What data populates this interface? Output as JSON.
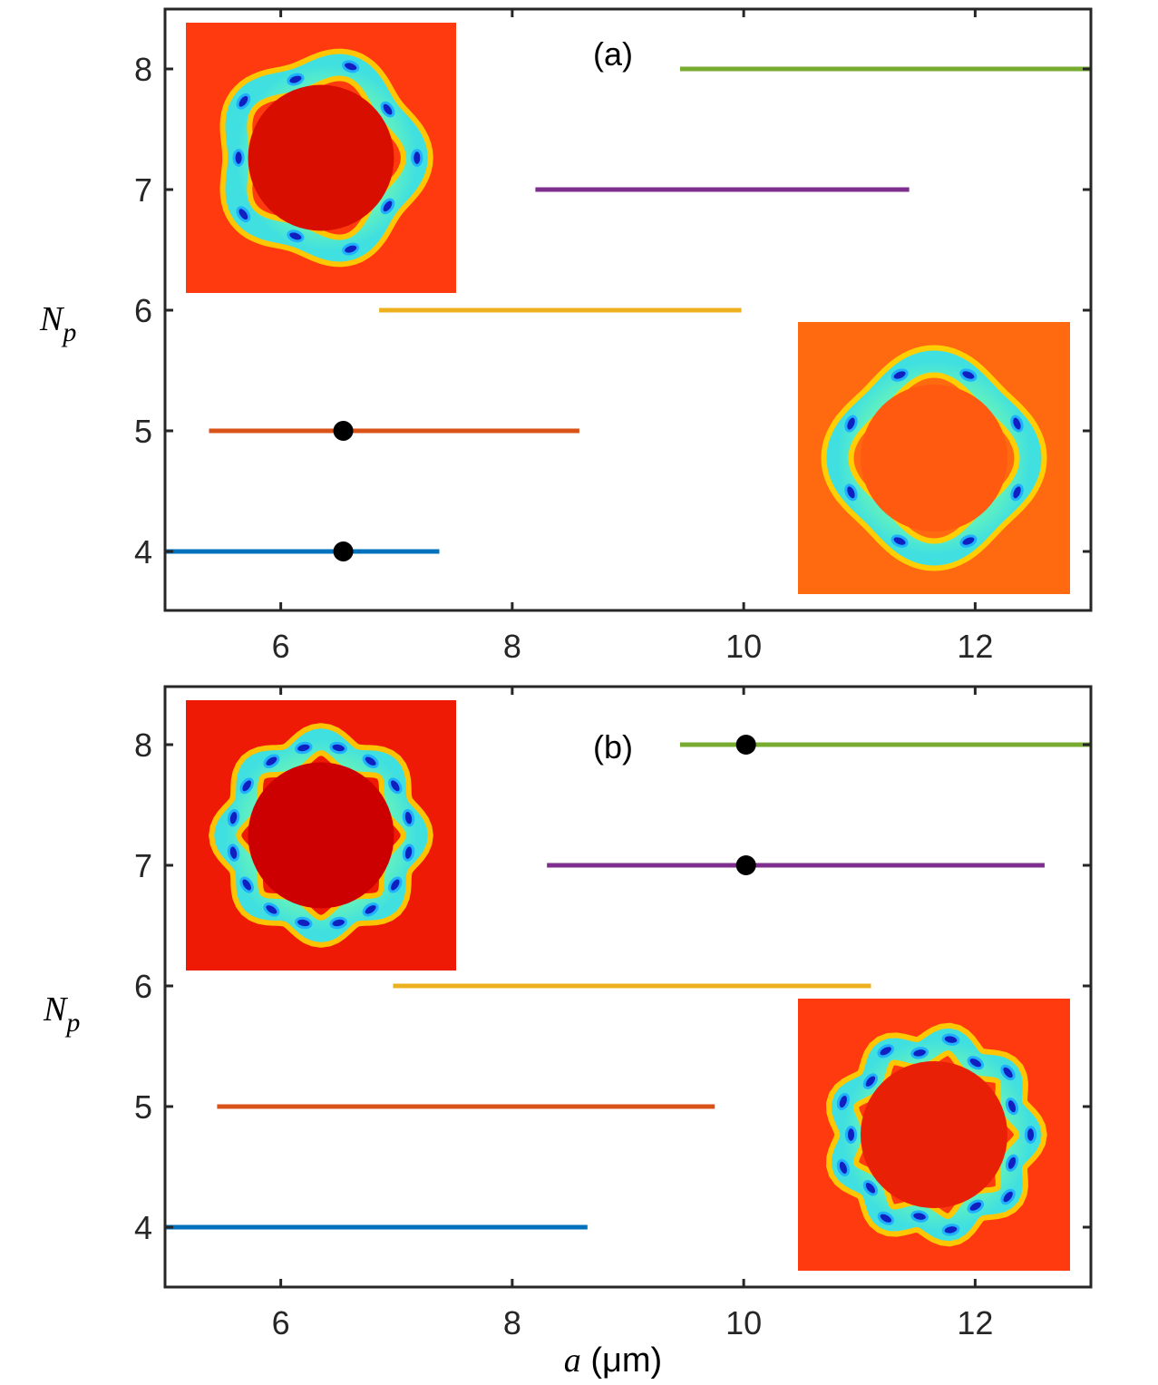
{
  "chart_data": [
    {
      "type": "line",
      "panel_label": "(a)",
      "xlabel": "",
      "ylabel": "N_p",
      "ylabel_main": "N",
      "ylabel_sub": "p",
      "xlim": [
        5,
        13
      ],
      "ylim": [
        3.5,
        8.5
      ],
      "xticks": [
        6,
        8,
        10,
        12
      ],
      "yticks": [
        4,
        5,
        6,
        7,
        8
      ],
      "grid": false,
      "segments": [
        {
          "np": 4,
          "x_start": 5.0,
          "x_end": 7.37,
          "color": "#0072BD"
        },
        {
          "np": 5,
          "x_start": 5.38,
          "x_end": 8.58,
          "color": "#D95319"
        },
        {
          "np": 6,
          "x_start": 6.85,
          "x_end": 9.98,
          "color": "#EDB120"
        },
        {
          "np": 7,
          "x_start": 8.2,
          "x_end": 11.43,
          "color": "#7E2F8E"
        },
        {
          "np": 8,
          "x_start": 9.45,
          "x_end": 13.0,
          "color": "#77AC30"
        }
      ],
      "markers": [
        {
          "x": 6.54,
          "y": 5
        },
        {
          "x": 6.54,
          "y": 4
        }
      ],
      "insets": [
        {
          "position": "top-left",
          "petals": 5,
          "background": "#ff3a0e",
          "inner": "#d80f00"
        },
        {
          "position": "bottom-right",
          "petals": 4,
          "background": "#ff6a10",
          "inner": "#ff5a10"
        }
      ]
    },
    {
      "type": "line",
      "panel_label": "(b)",
      "xlabel": "a (μm)",
      "xlabel_var": "a",
      "xlabel_unit": " (μm)",
      "ylabel": "N_p",
      "ylabel_main": "N",
      "ylabel_sub": "p",
      "xlim": [
        5,
        13
      ],
      "ylim": [
        3.5,
        8.5
      ],
      "xticks": [
        6,
        8,
        10,
        12
      ],
      "yticks": [
        4,
        5,
        6,
        7,
        8
      ],
      "grid": false,
      "segments": [
        {
          "np": 4,
          "x_start": 5.0,
          "x_end": 8.65,
          "color": "#0072BD"
        },
        {
          "np": 5,
          "x_start": 5.45,
          "x_end": 9.75,
          "color": "#D95319"
        },
        {
          "np": 6,
          "x_start": 6.97,
          "x_end": 11.1,
          "color": "#EDB120"
        },
        {
          "np": 7,
          "x_start": 8.3,
          "x_end": 12.6,
          "color": "#7E2F8E"
        },
        {
          "np": 8,
          "x_start": 9.45,
          "x_end": 13.0,
          "color": "#77AC30"
        }
      ],
      "markers": [
        {
          "x": 10.02,
          "y": 8
        },
        {
          "x": 10.02,
          "y": 7
        }
      ],
      "insets": [
        {
          "position": "top-left",
          "petals": 8,
          "background": "#ee1a06",
          "inner": "#cc0000"
        },
        {
          "position": "bottom-right",
          "petals": 9,
          "background": "#ff3a0e",
          "inner": "#e82005"
        }
      ]
    }
  ]
}
